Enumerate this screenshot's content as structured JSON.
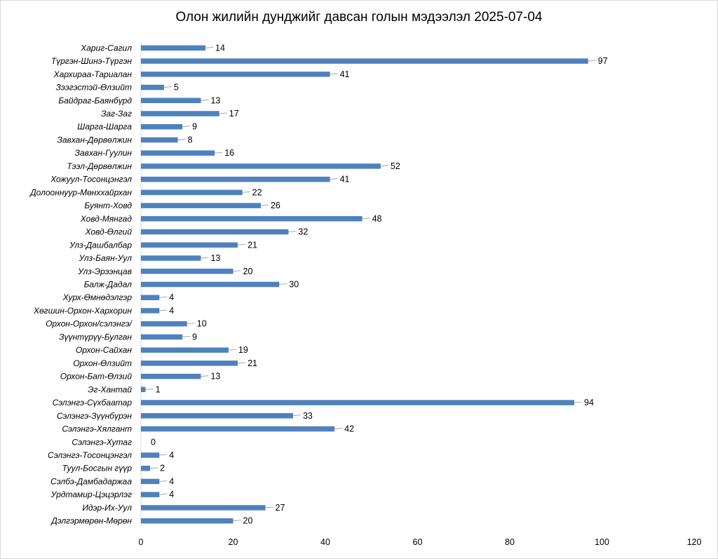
{
  "chart_data": {
    "type": "bar",
    "orientation": "horizontal",
    "title": "Олон жилийн дунджийг давсан голын мэдээлэл 2025-07-04",
    "xlim": [
      0,
      120
    ],
    "x_ticks": [
      "0",
      "20",
      "40",
      "60",
      "80",
      "100",
      "120"
    ],
    "grid": false,
    "bar_color": "#4f81bd",
    "categories": [
      "Хариг-Сагил",
      "Түргэн-Шинэ-Түргэн",
      "Хархираа-Тариалан",
      "Зээгэстэй-Өлзийт",
      "Байдраг-Баянбүрд",
      "Заг-Заг",
      "Шарга-Шарга",
      "Завхан-Дөрвөлжин",
      "Завхан-Гуулин",
      "Тээл-Дөрвөлжин",
      "Хожуул-Тосонцэнгэл",
      "Долооннуур-Мөнххайрхан",
      "Буянт-Ховд",
      "Ховд-Мянгад",
      "Ховд-Өлгий",
      "Улз-Дашбалбар",
      "Улз-Баян-Уул",
      "Улз-Эрээнцав",
      "Балж-Дадал",
      "Хурх-Өмнөдэлгэр",
      "Хөгшин-Орхон-Хархорин",
      "Орхон-Орхон/сэлэнгэ/",
      "Зүүнтүрүү-Булган",
      "Орхон-Сайхан",
      "Орхон-Өлзийт",
      "Орхон-Бат-Өлзий",
      "Эг-Хантай",
      "Сэлэнгэ-Сүхбаатар",
      "Сэлэнгэ-Зүүнбүрэн",
      "Сэлэнгэ-Хялгант",
      "Сэлэнгэ-Хутаг",
      "Сэлэнгэ-Тосонцэнгэл",
      "Туул-Босгын гүүр",
      "Сэлбэ-Дамбадаржаа",
      "Урдтамир-Цэцэрлэг",
      "Идэр-Их-Уул",
      "Дэлгэрмөрөн-Мөрөн"
    ],
    "values": [
      14,
      97,
      41,
      5,
      13,
      17,
      9,
      8,
      16,
      52,
      41,
      22,
      26,
      48,
      32,
      21,
      13,
      20,
      30,
      4,
      4,
      10,
      9,
      19,
      21,
      13,
      1,
      94,
      33,
      42,
      0,
      4,
      2,
      4,
      4,
      27,
      20
    ]
  }
}
